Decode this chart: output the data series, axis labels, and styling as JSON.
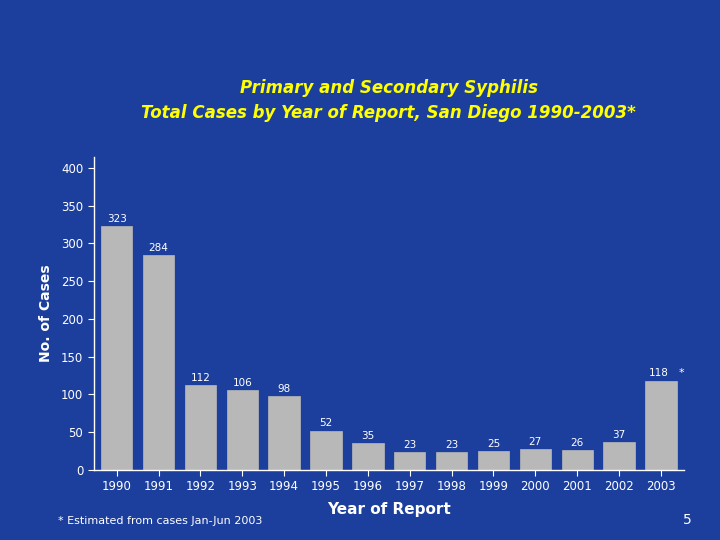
{
  "title_line1": "Primary and Secondary Syphilis",
  "title_line2": "Total Cases by Year of Report, San Diego 1990-2003*",
  "xlabel": "Year of Report",
  "ylabel": "No. of Cases",
  "years": [
    1990,
    1991,
    1992,
    1993,
    1994,
    1995,
    1996,
    1997,
    1998,
    1999,
    2000,
    2001,
    2002,
    2003
  ],
  "values": [
    323,
    284,
    112,
    106,
    98,
    52,
    35,
    23,
    23,
    25,
    27,
    26,
    37,
    118
  ],
  "bar_color": "#b8b8b8",
  "background_color": "#1c3f9e",
  "title_color": "#ffff00",
  "bar_label_color_default": "#ffffff",
  "axis_label_color": "#ffffff",
  "tick_label_color": "#ffffff",
  "yticks": [
    0,
    50,
    100,
    150,
    200,
    250,
    300,
    350,
    400
  ],
  "ylim": [
    0,
    415
  ],
  "footnote": "* Estimated from cases Jan-Jun 2003",
  "footnote_color": "#ffffff",
  "page_number": "5",
  "page_number_color": "#ffffff"
}
